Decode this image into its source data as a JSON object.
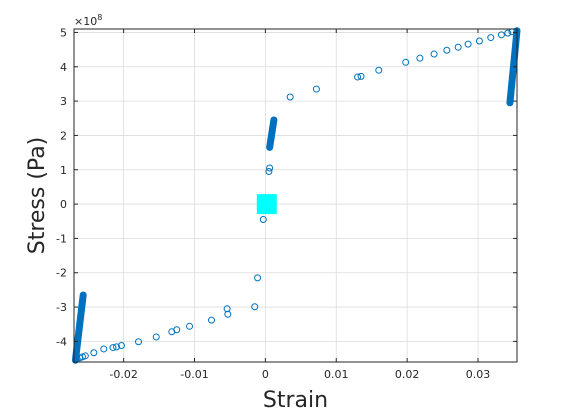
{
  "chart_data": {
    "type": "scatter",
    "xlabel": "Strain",
    "ylabel": "Stress (Pa)",
    "y_exponent_label": "×10",
    "y_exponent_power": "8",
    "xlim": [
      -0.027,
      0.0355
    ],
    "ylim": [
      -4.6,
      5.1
    ],
    "y_scale_factor": 100000000,
    "xticks": [
      -0.02,
      -0.01,
      0,
      0.01,
      0.02,
      0.03
    ],
    "xtick_labels": [
      "-0.02",
      "-0.01",
      "0",
      "0.01",
      "0.02",
      "0.03"
    ],
    "yticks": [
      -4,
      -3,
      -2,
      -1,
      0,
      1,
      2,
      3,
      4,
      5
    ],
    "ytick_labels": [
      "-4",
      "-3",
      "-2",
      "-1",
      "0",
      "1",
      "2",
      "3",
      "4",
      "5"
    ],
    "grid": true,
    "colors": {
      "markers": "#0072bd",
      "highlight": "#00ffff",
      "axis": "#262626",
      "grid": "#dcdcdc"
    },
    "scatter_points": [
      [
        -0.0266,
        -4.5
      ],
      [
        -0.0262,
        -4.48
      ],
      [
        -0.0258,
        -4.45
      ],
      [
        -0.0254,
        -4.42
      ],
      [
        -0.0242,
        -4.33
      ],
      [
        -0.0228,
        -4.22
      ],
      [
        -0.0215,
        -4.18
      ],
      [
        -0.021,
        -4.16
      ],
      [
        -0.0203,
        -4.12
      ],
      [
        -0.0179,
        -4.01
      ],
      [
        -0.0154,
        -3.87
      ],
      [
        -0.0132,
        -3.72
      ],
      [
        -0.0125,
        -3.66
      ],
      [
        -0.0107,
        -3.56
      ],
      [
        -0.0076,
        -3.38
      ],
      [
        -0.0053,
        -3.21
      ],
      [
        -0.0054,
        -3.05
      ],
      [
        -0.0015,
        -2.99
      ],
      [
        -0.0011,
        -2.15
      ],
      [
        -0.0003,
        -0.45
      ],
      [
        0.0005,
        0.95
      ],
      [
        0.0006,
        1.05
      ],
      [
        0.0035,
        3.12
      ],
      [
        0.0072,
        3.35
      ],
      [
        0.013,
        3.7
      ],
      [
        0.0135,
        3.72
      ],
      [
        0.016,
        3.9
      ],
      [
        0.0198,
        4.13
      ],
      [
        0.0218,
        4.25
      ],
      [
        0.0238,
        4.37
      ],
      [
        0.0256,
        4.48
      ],
      [
        0.0272,
        4.57
      ],
      [
        0.0286,
        4.66
      ],
      [
        0.0302,
        4.75
      ],
      [
        0.0318,
        4.85
      ],
      [
        0.0333,
        4.93
      ],
      [
        0.0342,
        4.98
      ],
      [
        0.0348,
        5.02
      ]
    ],
    "dense_segments": [
      {
        "start": [
          -0.0268,
          -4.55
        ],
        "end": [
          -0.0257,
          -2.65
        ]
      },
      {
        "start": [
          0.0006,
          1.65
        ],
        "end": [
          0.0012,
          2.45
        ]
      },
      {
        "start": [
          0.0345,
          2.95
        ],
        "end": [
          0.0355,
          5.05
        ]
      }
    ],
    "highlight_point": [
      0.0002,
      0.0
    ]
  }
}
